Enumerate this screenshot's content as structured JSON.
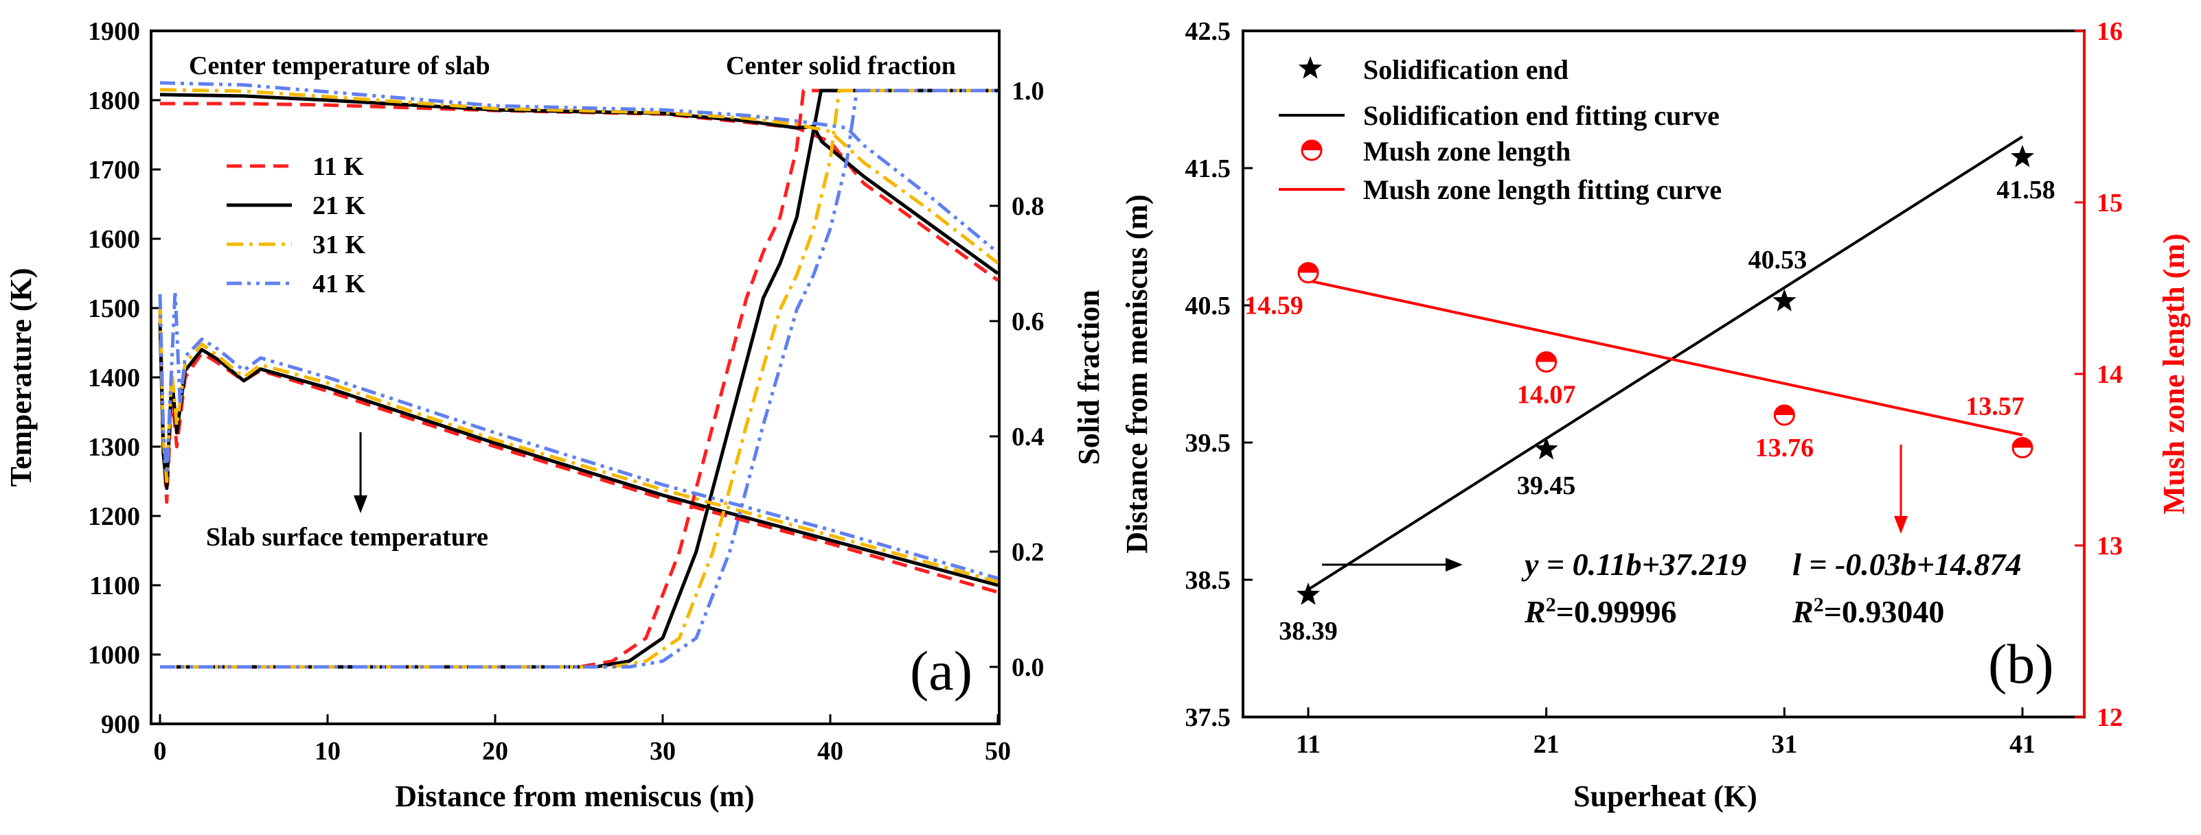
{
  "chart_data": [
    {
      "panel_label": "(a)",
      "type": "line",
      "xlabel": "Distance from meniscus (m)",
      "ylabel_left": "Temperature (K)",
      "ylabel_right": "Solid  fraction",
      "xlim": [
        0,
        50
      ],
      "ylim_left": [
        900,
        1900
      ],
      "ylim_right": [
        -0.1,
        1.05
      ],
      "x_ticks": [
        0,
        10,
        20,
        30,
        40,
        50
      ],
      "y_left_ticks": [
        900,
        1000,
        1100,
        1200,
        1300,
        1400,
        1500,
        1600,
        1700,
        1800,
        1900
      ],
      "y_right_ticks": [
        "0.0",
        "0.2",
        "0.4",
        "0.6",
        "0.8",
        "1.0"
      ],
      "legend_position": "upper-left",
      "annotations": {
        "center_temperature": "Center temperature of slab",
        "center_solid_fraction": "Center solid fraction",
        "surface_temperature": "Slab surface temperature"
      },
      "series": [
        {
          "name": "11 K",
          "color": "#ff2020",
          "dash": "dashed",
          "center_temperature": [
            [
              0,
              1795
            ],
            [
              5,
              1795
            ],
            [
              10,
              1793
            ],
            [
              20,
              1785
            ],
            [
              30,
              1780
            ],
            [
              35,
              1768
            ],
            [
              38,
              1760
            ],
            [
              40,
              1740
            ],
            [
              42,
              1680
            ],
            [
              46,
              1610
            ],
            [
              50,
              1540
            ]
          ],
          "surface_temperature": [
            [
              0,
              1500
            ],
            [
              0.2,
              1300
            ],
            [
              0.4,
              1220
            ],
            [
              0.7,
              1380
            ],
            [
              1,
              1300
            ],
            [
              1.5,
              1400
            ],
            [
              2.5,
              1435
            ],
            [
              3.5,
              1420
            ],
            [
              5,
              1395
            ],
            [
              6,
              1410
            ],
            [
              10,
              1380
            ],
            [
              20,
              1300
            ],
            [
              30,
              1225
            ],
            [
              40,
              1160
            ],
            [
              50,
              1090
            ]
          ],
          "solid_fraction": [
            [
              0,
              0
            ],
            [
              25,
              0
            ],
            [
              27,
              0.01
            ],
            [
              29,
              0.05
            ],
            [
              31,
              0.2
            ],
            [
              33,
              0.42
            ],
            [
              35,
              0.64
            ],
            [
              36,
              0.72
            ],
            [
              37,
              0.78
            ],
            [
              38,
              0.9
            ],
            [
              38.4,
              1.0
            ],
            [
              50,
              1.0
            ]
          ]
        },
        {
          "name": "21 K",
          "color": "#000000",
          "dash": "solid",
          "center_temperature": [
            [
              0,
              1808
            ],
            [
              5,
              1806
            ],
            [
              10,
              1800
            ],
            [
              20,
              1786
            ],
            [
              30,
              1781
            ],
            [
              35,
              1770
            ],
            [
              38,
              1760
            ],
            [
              39,
              1762
            ],
            [
              39.5,
              1740
            ],
            [
              42,
              1690
            ],
            [
              46,
              1620
            ],
            [
              50,
              1550
            ]
          ],
          "surface_temperature": [
            [
              0,
              1480
            ],
            [
              0.2,
              1290
            ],
            [
              0.4,
              1240
            ],
            [
              0.7,
              1400
            ],
            [
              1,
              1320
            ],
            [
              1.5,
              1410
            ],
            [
              2.5,
              1440
            ],
            [
              3.5,
              1425
            ],
            [
              5,
              1395
            ],
            [
              6,
              1412
            ],
            [
              10,
              1385
            ],
            [
              20,
              1305
            ],
            [
              30,
              1230
            ],
            [
              40,
              1165
            ],
            [
              50,
              1100
            ]
          ],
          "solid_fraction": [
            [
              0,
              0
            ],
            [
              26,
              0
            ],
            [
              28,
              0.01
            ],
            [
              30,
              0.05
            ],
            [
              32,
              0.2
            ],
            [
              34,
              0.42
            ],
            [
              36,
              0.64
            ],
            [
              37,
              0.7
            ],
            [
              38,
              0.78
            ],
            [
              38.8,
              0.9
            ],
            [
              39.45,
              1.0
            ],
            [
              50,
              1.0
            ]
          ]
        },
        {
          "name": "31 K",
          "color": "#f5b800",
          "dash": "dash-dot",
          "center_temperature": [
            [
              0,
              1815
            ],
            [
              5,
              1813
            ],
            [
              10,
              1805
            ],
            [
              20,
              1788
            ],
            [
              30,
              1782
            ],
            [
              35,
              1774
            ],
            [
              38,
              1765
            ],
            [
              40,
              1755
            ],
            [
              42,
              1710
            ],
            [
              46,
              1640
            ],
            [
              50,
              1565
            ]
          ],
          "surface_temperature": [
            [
              0,
              1500
            ],
            [
              0.2,
              1310
            ],
            [
              0.4,
              1250
            ],
            [
              0.7,
              1410
            ],
            [
              1,
              1330
            ],
            [
              1.5,
              1420
            ],
            [
              2.5,
              1448
            ],
            [
              3.5,
              1430
            ],
            [
              5,
              1400
            ],
            [
              6,
              1418
            ],
            [
              10,
              1392
            ],
            [
              20,
              1310
            ],
            [
              30,
              1238
            ],
            [
              40,
              1172
            ],
            [
              50,
              1105
            ]
          ],
          "solid_fraction": [
            [
              0,
              0
            ],
            [
              27,
              0
            ],
            [
              29,
              0.01
            ],
            [
              31,
              0.05
            ],
            [
              33,
              0.2
            ],
            [
              35,
              0.42
            ],
            [
              37,
              0.62
            ],
            [
              38,
              0.68
            ],
            [
              39,
              0.76
            ],
            [
              40,
              0.88
            ],
            [
              40.53,
              1.0
            ],
            [
              50,
              1.0
            ]
          ]
        },
        {
          "name": "41 K",
          "color": "#6080f0",
          "dash": "dash-dot-dot",
          "center_temperature": [
            [
              0,
              1825
            ],
            [
              5,
              1822
            ],
            [
              10,
              1812
            ],
            [
              20,
              1792
            ],
            [
              30,
              1786
            ],
            [
              35,
              1778
            ],
            [
              38,
              1770
            ],
            [
              41,
              1760
            ],
            [
              42,
              1735
            ],
            [
              46,
              1660
            ],
            [
              50,
              1580
            ]
          ],
          "surface_temperature": [
            [
              0,
              1520
            ],
            [
              0.2,
              1320
            ],
            [
              0.4,
              1260
            ],
            [
              0.7,
              1420
            ],
            [
              0.9,
              1525
            ],
            [
              1.2,
              1360
            ],
            [
              1.5,
              1430
            ],
            [
              2.5,
              1455
            ],
            [
              3.5,
              1440
            ],
            [
              5,
              1410
            ],
            [
              6,
              1428
            ],
            [
              10,
              1400
            ],
            [
              20,
              1320
            ],
            [
              30,
              1245
            ],
            [
              40,
              1180
            ],
            [
              50,
              1110
            ]
          ],
          "solid_fraction": [
            [
              0,
              0
            ],
            [
              28,
              0
            ],
            [
              30,
              0.01
            ],
            [
              32,
              0.05
            ],
            [
              34,
              0.2
            ],
            [
              36,
              0.42
            ],
            [
              38,
              0.62
            ],
            [
              39,
              0.68
            ],
            [
              40,
              0.76
            ],
            [
              41,
              0.88
            ],
            [
              41.58,
              1.0
            ],
            [
              50,
              1.0
            ]
          ]
        }
      ]
    },
    {
      "panel_label": "(b)",
      "type": "scatter",
      "xlabel": "Superheat  (K)",
      "ylabel_left": "Distance from meniscus (m)",
      "ylabel_right": "Mush zone length (m)",
      "x_ticks": [
        "11",
        "21",
        "31",
        "41"
      ],
      "xlim": [
        5,
        47
      ],
      "ylim_left": [
        37.5,
        42.5
      ],
      "ylim_right": [
        12,
        16
      ],
      "y_left_ticks": [
        "37.5",
        "38.5",
        "39.5",
        "40.5",
        "41.5",
        "42.5"
      ],
      "y_right_ticks": [
        "12",
        "13",
        "14",
        "15",
        "16"
      ],
      "legend_position": "upper-left",
      "colors": {
        "primary": "#000000",
        "accent": "#ff0000"
      },
      "legend": [
        "Solidification end",
        "Solidification end fitting curve",
        "Mush zone length",
        "Mush zone length fitting curve"
      ],
      "series": [
        {
          "name": "Solidification end",
          "axis": "left",
          "marker": "star",
          "x": [
            11,
            21,
            31,
            41
          ],
          "y": [
            38.39,
            39.45,
            40.53,
            41.58
          ],
          "labels": [
            "38.39",
            "39.45",
            "40.53",
            "41.58"
          ]
        },
        {
          "name": "Mush zone length",
          "axis": "right",
          "marker": "half-filled circle",
          "x": [
            11,
            21,
            31,
            41
          ],
          "y": [
            14.59,
            14.07,
            13.76,
            13.57
          ],
          "labels": [
            "14.59",
            "14.07",
            "13.76",
            "13.57"
          ]
        }
      ],
      "fits": {
        "solidification": {
          "slope": 0.11,
          "intercept": 37.219,
          "eq": "y = 0.11b+37.219",
          "r2": "0.99996"
        },
        "mush": {
          "slope": -0.03,
          "intercept": 14.874,
          "eq": "l = -0.03b+14.874",
          "r2": "0.93040"
        }
      }
    }
  ]
}
